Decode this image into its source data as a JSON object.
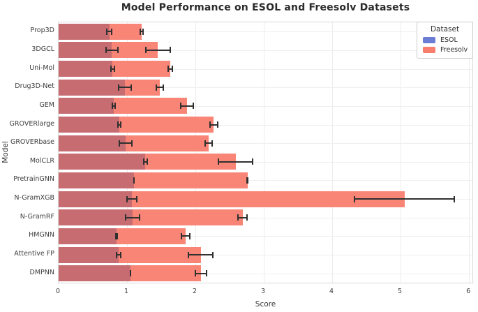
{
  "title": "Model Performance on ESOL and Freesolv Datasets",
  "legend": {
    "title": "Dataset",
    "entries": [
      {
        "label": "ESOL",
        "color": "#6b7dd4"
      },
      {
        "label": "Freesolv",
        "color": "#f87e6e"
      }
    ]
  },
  "colors": {
    "esol_blue": "#6b7dd4",
    "freesolv_salmon": "#f98577",
    "overlap_dark": "#c76d72",
    "errorbar": "#303030",
    "gridline": "#ececec"
  },
  "chart_data": {
    "type": "bar",
    "orientation": "horizontal",
    "title": "Model Performance on ESOL and Freesolv Datasets",
    "xlabel": "Score",
    "ylabel": "Model",
    "xlim": [
      0,
      6.05
    ],
    "xticks": [
      0,
      1,
      2,
      3,
      4,
      5,
      6
    ],
    "grid": true,
    "legend_position": "upper right",
    "categories": [
      "Prop3D",
      "3DGCL",
      "Uni-Mol",
      "Drug3D-Net",
      "GEM",
      "GROVERlarge",
      "GROVERbase",
      "MolCLR",
      "PretrainGNN",
      "N-GramXGB",
      "N-GramRF",
      "HMGNN",
      "Attentive FP",
      "DMPNN"
    ],
    "series": [
      {
        "name": "ESOL",
        "values": [
          0.74,
          0.78,
          0.79,
          0.97,
          0.81,
          0.89,
          0.98,
          1.27,
          1.1,
          1.07,
          1.08,
          0.85,
          0.88,
          1.05
        ],
        "errors": [
          0.05,
          0.1,
          0.04,
          0.1,
          0.03,
          0.03,
          0.1,
          0.04,
          0.01,
          0.08,
          0.11,
          0.02,
          0.04,
          0.01
        ]
      },
      {
        "name": "Freesolv",
        "values": [
          1.21,
          1.45,
          1.63,
          1.48,
          1.88,
          2.27,
          2.19,
          2.59,
          2.76,
          5.06,
          2.69,
          1.86,
          2.08,
          2.08
        ],
        "errors": [
          0.03,
          0.19,
          0.04,
          0.06,
          0.1,
          0.07,
          0.06,
          0.26,
          0.02,
          0.74,
          0.08,
          0.07,
          0.19,
          0.09
        ]
      }
    ]
  }
}
